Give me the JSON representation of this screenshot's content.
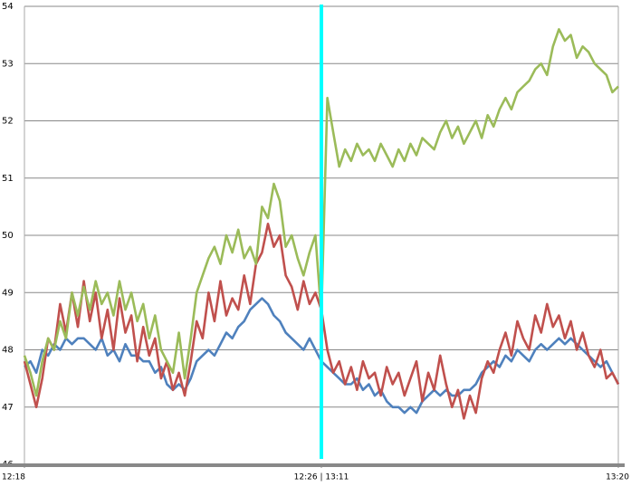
{
  "chart_data": {
    "type": "line",
    "xlim": [
      0,
      100
    ],
    "xticks": [
      {
        "value": 0,
        "label": "12:18"
      },
      {
        "value": 50,
        "label": "12:26 | 13:11"
      },
      {
        "value": 100,
        "label": "13:20"
      }
    ],
    "ylim": [
      46,
      54
    ],
    "yticks": [
      46,
      47,
      48,
      49,
      50,
      51,
      52,
      53,
      54
    ],
    "grid": true,
    "vline": {
      "x": 50,
      "color": "#00ffff"
    },
    "series": [
      {
        "color": "#4f81bd",
        "values": [
          47.7,
          47.8,
          47.6,
          48.0,
          47.9,
          48.1,
          48.0,
          48.2,
          48.1,
          48.2,
          48.2,
          48.1,
          48.0,
          48.2,
          47.9,
          48.0,
          47.8,
          48.1,
          47.9,
          47.9,
          47.8,
          47.8,
          47.6,
          47.7,
          47.4,
          47.3,
          47.4,
          47.3,
          47.5,
          47.8,
          47.9,
          48.0,
          47.9,
          48.1,
          48.3,
          48.2,
          48.4,
          48.5,
          48.7,
          48.8,
          48.9,
          48.8,
          48.6,
          48.5,
          48.3,
          48.2,
          48.1,
          48.0,
          48.2,
          48.0,
          47.8,
          47.7,
          47.6,
          47.5,
          47.4,
          47.4,
          47.5,
          47.3,
          47.4,
          47.2,
          47.3,
          47.1,
          47.0,
          47.0,
          46.9,
          47.0,
          46.9,
          47.1,
          47.2,
          47.3,
          47.2,
          47.3,
          47.2,
          47.2,
          47.3,
          47.3,
          47.4,
          47.6,
          47.7,
          47.8,
          47.7,
          47.9,
          47.8,
          48.0,
          47.9,
          47.8,
          48.0,
          48.1,
          48.0,
          48.1,
          48.2,
          48.1,
          48.2,
          48.1,
          48.0,
          47.9,
          47.8,
          47.7,
          47.8,
          47.6,
          47.4
        ]
      },
      {
        "color": "#c0504d",
        "values": [
          47.8,
          47.4,
          47.0,
          47.5,
          48.2,
          48.0,
          48.8,
          48.3,
          49.0,
          48.4,
          49.2,
          48.5,
          49.0,
          48.2,
          48.7,
          48.0,
          48.9,
          48.3,
          48.6,
          47.8,
          48.4,
          47.9,
          48.2,
          47.5,
          47.8,
          47.3,
          47.6,
          47.2,
          47.8,
          48.5,
          48.2,
          49.0,
          48.5,
          49.2,
          48.6,
          48.9,
          48.7,
          49.3,
          48.8,
          49.5,
          49.7,
          50.2,
          49.8,
          50.0,
          49.3,
          49.1,
          48.7,
          49.2,
          48.8,
          49.0,
          48.7,
          48.0,
          47.6,
          47.8,
          47.4,
          47.7,
          47.3,
          47.8,
          47.5,
          47.6,
          47.2,
          47.7,
          47.4,
          47.6,
          47.2,
          47.5,
          47.8,
          47.1,
          47.6,
          47.3,
          47.9,
          47.4,
          47.0,
          47.3,
          46.8,
          47.2,
          46.9,
          47.5,
          47.8,
          47.6,
          48.0,
          48.3,
          47.9,
          48.5,
          48.2,
          48.0,
          48.6,
          48.3,
          48.8,
          48.4,
          48.6,
          48.2,
          48.5,
          48.0,
          48.3,
          47.9,
          47.7,
          48.0,
          47.5,
          47.6,
          47.4
        ]
      },
      {
        "color": "#9bbb59",
        "values": [
          47.9,
          47.6,
          47.2,
          47.8,
          48.2,
          48.0,
          48.5,
          48.2,
          49.0,
          48.6,
          49.1,
          48.7,
          49.2,
          48.8,
          49.0,
          48.6,
          49.2,
          48.7,
          49.0,
          48.5,
          48.8,
          48.2,
          48.6,
          48.0,
          47.8,
          47.6,
          48.3,
          47.5,
          48.2,
          49.0,
          49.3,
          49.6,
          49.8,
          49.5,
          50.0,
          49.7,
          50.1,
          49.6,
          49.8,
          49.5,
          50.5,
          50.3,
          50.9,
          50.6,
          49.8,
          50.0,
          49.6,
          49.3,
          49.7,
          50.0,
          48.6,
          52.4,
          51.8,
          51.2,
          51.5,
          51.3,
          51.6,
          51.4,
          51.5,
          51.3,
          51.6,
          51.4,
          51.2,
          51.5,
          51.3,
          51.6,
          51.4,
          51.7,
          51.6,
          51.5,
          51.8,
          52.0,
          51.7,
          51.9,
          51.6,
          51.8,
          52.0,
          51.7,
          52.1,
          51.9,
          52.2,
          52.4,
          52.2,
          52.5,
          52.6,
          52.7,
          52.9,
          53.0,
          52.8,
          53.3,
          53.6,
          53.4,
          53.5,
          53.1,
          53.3,
          53.2,
          53.0,
          52.9,
          52.8,
          52.5,
          52.6
        ]
      }
    ]
  }
}
